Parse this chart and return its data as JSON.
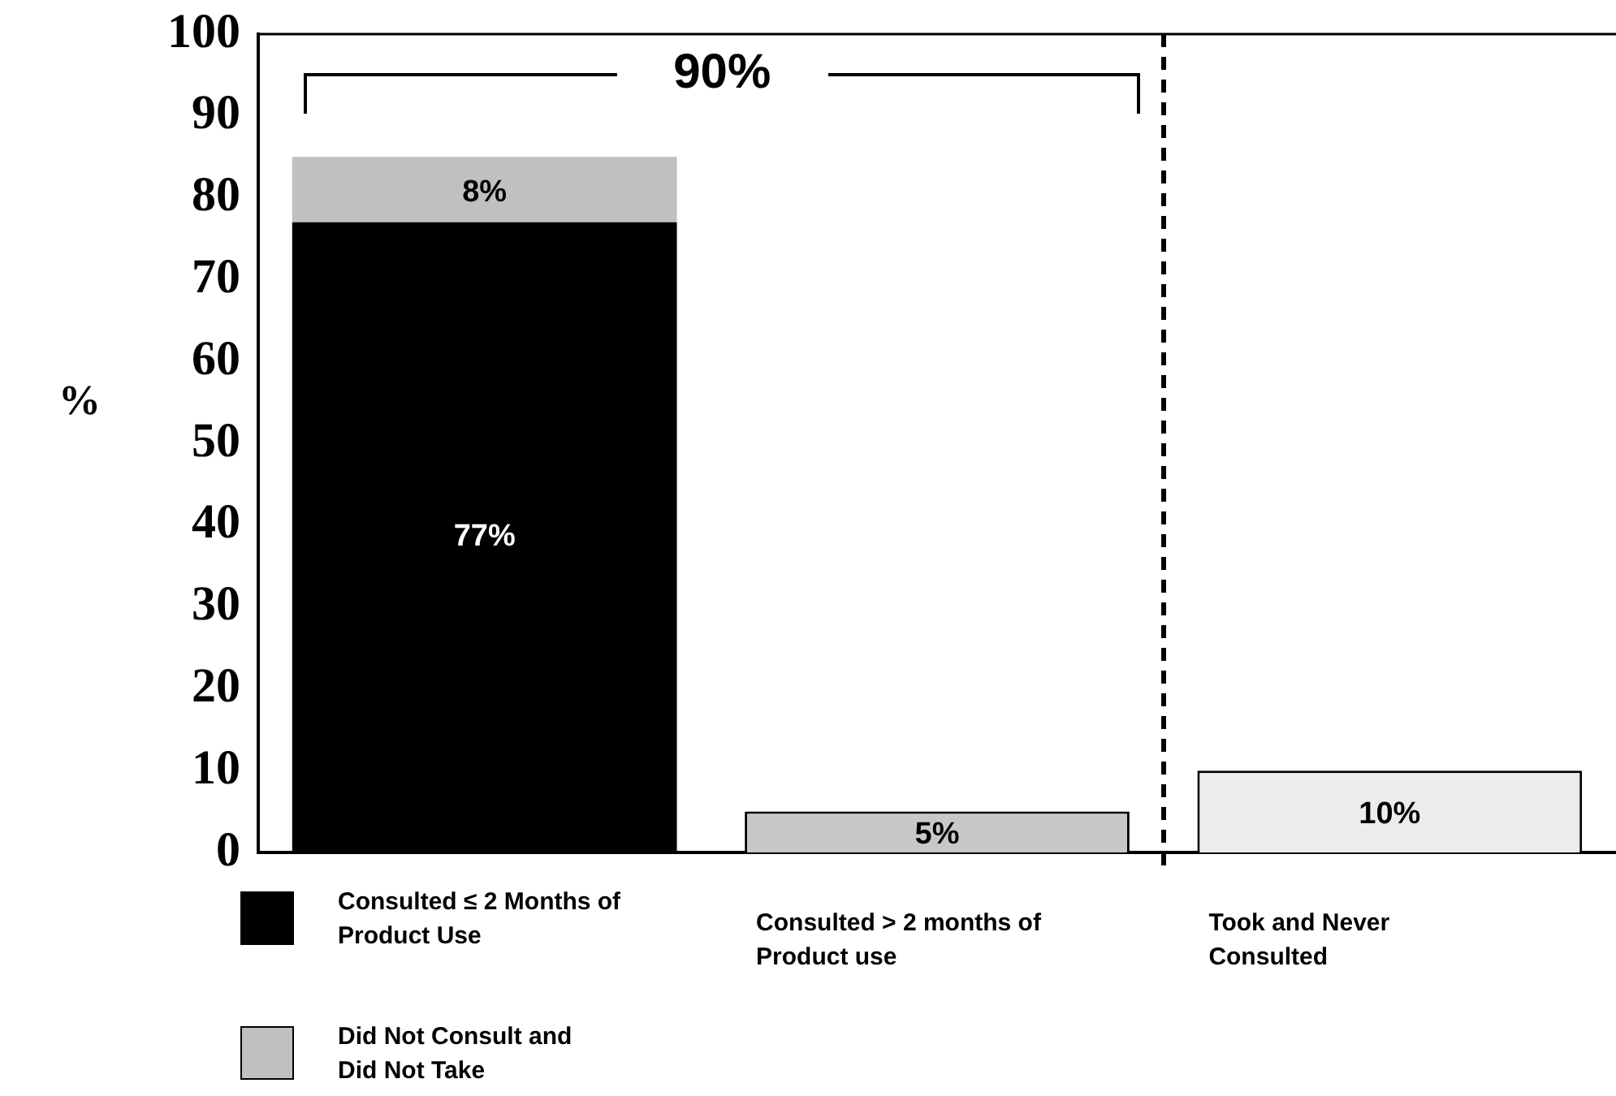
{
  "chart_data": {
    "type": "bar",
    "stacked": true,
    "ylabel": "%",
    "categories": [
      null,
      "Consulted > 2  months of Product use",
      "Took and Never Consulted"
    ],
    "series": [
      {
        "name": "Consulted  ≤ 2 Months of Product Use",
        "color": "#000000",
        "values": [
          77,
          null,
          null
        ],
        "value_labels": [
          "77%",
          null,
          null
        ]
      },
      {
        "name": "Did Not Consult and Did Not Take",
        "color": "#c0c0c0",
        "values": [
          8,
          null,
          null
        ],
        "value_labels": [
          "8%",
          null,
          null
        ]
      },
      {
        "color": "#d8d8d8",
        "colors": [
          null,
          "#c8c8c8",
          "#ececec"
        ],
        "values": [
          null,
          5,
          10
        ],
        "value_labels": [
          null,
          "5%",
          "10%"
        ]
      }
    ],
    "annotations": [
      "90%"
    ],
    "ylim": [
      0,
      100
    ],
    "yticks": [
      0,
      10,
      20,
      30,
      40,
      50,
      60,
      70,
      80,
      90,
      100
    ],
    "grid": false,
    "legend": "bottom left"
  }
}
